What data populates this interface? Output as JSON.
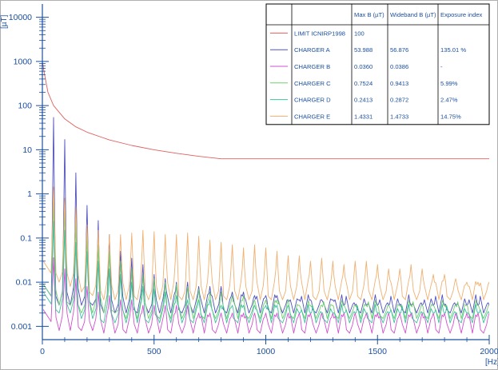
{
  "chart_data": {
    "type": "line",
    "title": "",
    "xlabel": "[Hz]",
    "ylabel": "[µT]",
    "x_unit": "[Hz]",
    "y_unit": "[µT]",
    "xlim": [
      0,
      2000
    ],
    "ylim": [
      0.0005,
      20000
    ],
    "y_scale": "log",
    "x_ticks": [
      "0",
      "500",
      "1000",
      "1500",
      "2000"
    ],
    "y_ticks": [
      "0.001",
      "0.01",
      "0.1",
      "1",
      "10",
      "100",
      "1000",
      "10000"
    ],
    "grid": false,
    "legend_position": "top-right",
    "colors": {
      "axis": "#1a4fa0",
      "table_border": "#000000",
      "limit": "#e06060",
      "charger_a": "#5050c0",
      "charger_b": "#d050d0",
      "charger_c": "#70d070",
      "charger_d": "#40c0a0",
      "charger_e": "#f0b070"
    },
    "table": {
      "headers": [
        "",
        "",
        "Max B (µT)",
        "Wideband B (µT)",
        "Exposure index"
      ],
      "rows": [
        {
          "name": "LIMIT ICNIRP1998",
          "max_b": "100",
          "wideband_b": "",
          "exposure_index": ""
        },
        {
          "name": "CHARGER A",
          "max_b": "53.988",
          "wideband_b": "56.876",
          "exposure_index": "135.01 %"
        },
        {
          "name": "CHARGER B",
          "max_b": "0.0360",
          "wideband_b": "0.0386",
          "exposure_index": "-"
        },
        {
          "name": "CHARGER C",
          "max_b": "0.7524",
          "wideband_b": "0.9413",
          "exposure_index": "5.99%"
        },
        {
          "name": "CHARGER D",
          "max_b": "0.2413",
          "wideband_b": "0.2872",
          "exposure_index": "2.47%"
        },
        {
          "name": "CHARGER E",
          "max_b": "1.4331",
          "wideband_b": "1.4733",
          "exposure_index": "14.75%"
        }
      ]
    },
    "series": [
      {
        "name": "LIMIT ICNIRP1998",
        "color_key": "limit",
        "x": [
          0,
          10,
          25,
          50,
          100,
          150,
          200,
          300,
          400,
          500,
          600,
          700,
          800,
          1000,
          1500,
          2000
        ],
        "y": [
          1000,
          500,
          200,
          100,
          50,
          33,
          25,
          16.7,
          12.5,
          10,
          8.3,
          7.1,
          6.25,
          6.25,
          6.25,
          6.25
        ]
      },
      {
        "name": "CHARGER A",
        "color_key": "charger_a",
        "harmonics": {
          "fundamental_hz": 50,
          "count": 40,
          "peaks": [
            53.988,
            17,
            3,
            0.55,
            0.25,
            0.12,
            0.05,
            0.035,
            0.025,
            0.015,
            0.012,
            0.01,
            0.01,
            0.008,
            0.008,
            0.008,
            0.006,
            0.006,
            0.005,
            0.005,
            0.005,
            0.004,
            0.004,
            0.004,
            0.004,
            0.004,
            0.003,
            0.003,
            0.003,
            0.003,
            0.003,
            0.003,
            0.003,
            0.003,
            0.003,
            0.003,
            0.003,
            0.003,
            0.003,
            0.003
          ],
          "valleys": [
            0.003,
            0.003,
            0.003,
            0.003,
            0.002,
            0.002,
            0.002,
            0.002,
            0.002,
            0.002,
            0.002,
            0.002,
            0.002,
            0.002,
            0.002,
            0.002,
            0.002,
            0.002,
            0.002,
            0.002,
            0.002,
            0.002,
            0.002,
            0.002,
            0.002,
            0.002,
            0.002,
            0.002,
            0.002,
            0.002,
            0.002,
            0.002,
            0.002,
            0.002,
            0.002,
            0.002,
            0.002,
            0.002,
            0.002,
            0.002
          ]
        }
      },
      {
        "name": "CHARGER B",
        "color_key": "charger_b",
        "harmonics": {
          "fundamental_hz": 50,
          "count": 40,
          "peaks": [
            0.036,
            0.02,
            0.012,
            0.008,
            0.006,
            0.005,
            0.004,
            0.004,
            0.003,
            0.003,
            0.003,
            0.003,
            0.003,
            0.002,
            0.002,
            0.002,
            0.002,
            0.002,
            0.002,
            0.002,
            0.002,
            0.002,
            0.002,
            0.002,
            0.002,
            0.002,
            0.002,
            0.002,
            0.002,
            0.002,
            0.002,
            0.002,
            0.002,
            0.002,
            0.002,
            0.002,
            0.002,
            0.002,
            0.002,
            0.002
          ],
          "valleys": [
            0.0008,
            0.0008,
            0.0008,
            0.0008,
            0.0007,
            0.0007,
            0.0007,
            0.0007,
            0.0007,
            0.0007,
            0.0007,
            0.0007,
            0.0007,
            0.0007,
            0.0007,
            0.0007,
            0.0007,
            0.0007,
            0.0007,
            0.0007,
            0.0007,
            0.0007,
            0.0007,
            0.0007,
            0.0007,
            0.0007,
            0.0007,
            0.0007,
            0.0007,
            0.0007,
            0.0007,
            0.0007,
            0.0007,
            0.0007,
            0.0007,
            0.0007,
            0.0007,
            0.0007,
            0.0007,
            0.0007
          ]
        }
      },
      {
        "name": "CHARGER C",
        "color_key": "charger_c",
        "harmonics": {
          "fundamental_hz": 50,
          "count": 40,
          "peaks": [
            0.7524,
            0.5,
            0.25,
            0.12,
            0.07,
            0.05,
            0.03,
            0.02,
            0.015,
            0.012,
            0.01,
            0.009,
            0.008,
            0.007,
            0.006,
            0.006,
            0.005,
            0.005,
            0.004,
            0.004,
            0.004,
            0.004,
            0.003,
            0.003,
            0.003,
            0.003,
            0.003,
            0.003,
            0.003,
            0.003,
            0.003,
            0.003,
            0.003,
            0.003,
            0.003,
            0.003,
            0.003,
            0.003,
            0.003,
            0.003
          ],
          "valleys": [
            0.003,
            0.003,
            0.002,
            0.002,
            0.002,
            0.002,
            0.0015,
            0.0015,
            0.0015,
            0.0015,
            0.0015,
            0.0015,
            0.0015,
            0.0015,
            0.0015,
            0.0015,
            0.0015,
            0.0015,
            0.0015,
            0.0015,
            0.0015,
            0.0015,
            0.0015,
            0.0015,
            0.0015,
            0.0015,
            0.0015,
            0.0015,
            0.0015,
            0.0015,
            0.0015,
            0.0015,
            0.0015,
            0.0015,
            0.0015,
            0.0015,
            0.0015,
            0.0015,
            0.0015,
            0.0015
          ]
        }
      },
      {
        "name": "CHARGER D",
        "color_key": "charger_d",
        "harmonics": {
          "fundamental_hz": 50,
          "count": 40,
          "peaks": [
            0.2413,
            0.15,
            0.08,
            0.05,
            0.03,
            0.02,
            0.015,
            0.01,
            0.008,
            0.007,
            0.006,
            0.005,
            0.004,
            0.004,
            0.004,
            0.003,
            0.003,
            0.003,
            0.003,
            0.003,
            0.003,
            0.003,
            0.002,
            0.002,
            0.002,
            0.002,
            0.002,
            0.002,
            0.002,
            0.002,
            0.002,
            0.002,
            0.002,
            0.002,
            0.002,
            0.002,
            0.002,
            0.002,
            0.002,
            0.002
          ],
          "valleys": [
            0.002,
            0.002,
            0.0015,
            0.0015,
            0.0012,
            0.0012,
            0.0012,
            0.0012,
            0.0012,
            0.0012,
            0.0012,
            0.0012,
            0.0012,
            0.0012,
            0.0012,
            0.0012,
            0.0012,
            0.0012,
            0.0012,
            0.0012,
            0.0012,
            0.0012,
            0.0012,
            0.0012,
            0.0012,
            0.0012,
            0.0012,
            0.0012,
            0.0012,
            0.0012,
            0.0012,
            0.0012,
            0.0012,
            0.0012,
            0.0012,
            0.0012,
            0.0012,
            0.0012,
            0.0012,
            0.0012
          ]
        }
      },
      {
        "name": "CHARGER E",
        "color_key": "charger_e",
        "harmonics": {
          "fundamental_hz": 50,
          "count": 40,
          "peaks": [
            1.4331,
            0.8,
            0.5,
            0.2,
            0.15,
            0.12,
            0.12,
            0.13,
            0.15,
            0.14,
            0.12,
            0.12,
            0.13,
            0.11,
            0.09,
            0.08,
            0.07,
            0.06,
            0.07,
            0.06,
            0.05,
            0.04,
            0.04,
            0.03,
            0.035,
            0.03,
            0.025,
            0.03,
            0.03,
            0.025,
            0.02,
            0.02,
            0.025,
            0.02,
            0.015,
            0.015,
            0.012,
            0.01,
            0.01,
            0.01
          ],
          "valleys": [
            0.01,
            0.008,
            0.006,
            0.005,
            0.004,
            0.004,
            0.004,
            0.004,
            0.004,
            0.004,
            0.004,
            0.004,
            0.004,
            0.004,
            0.004,
            0.004,
            0.004,
            0.004,
            0.004,
            0.004,
            0.004,
            0.004,
            0.004,
            0.004,
            0.004,
            0.004,
            0.004,
            0.004,
            0.004,
            0.004,
            0.004,
            0.004,
            0.004,
            0.004,
            0.004,
            0.004,
            0.004,
            0.004,
            0.004,
            0.004
          ]
        }
      }
    ]
  }
}
